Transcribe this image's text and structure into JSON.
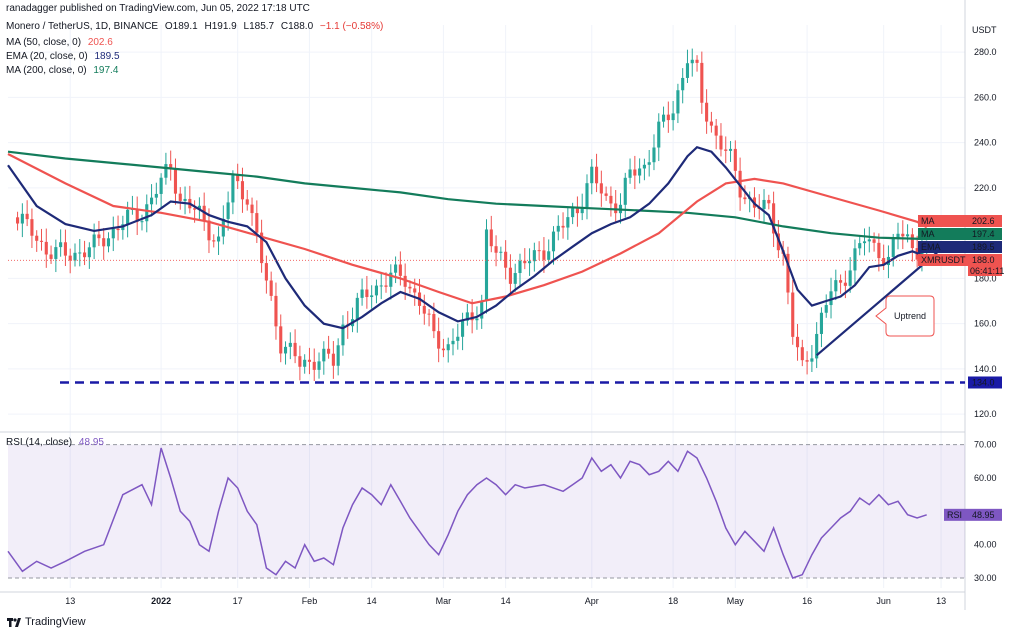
{
  "publisher": "ranadagger published on TradingView.com, Jun 05, 2022 17:18 UTC",
  "symbol": {
    "title": "Monero / TetherUS, 1D, BINANCE",
    "o": "O189.1",
    "h": "H191.9",
    "l": "L185.7",
    "c": "C188.0",
    "chg": "−1.1 (−0.58%)"
  },
  "indicators": [
    {
      "name": "MA (50, close, 0)",
      "value": "202.6",
      "color": "#ef5350"
    },
    {
      "name": "EMA (20, close, 0)",
      "value": "189.5",
      "color": "#1e2a78"
    },
    {
      "name": "MA (200, close, 0)",
      "value": "197.4",
      "color": "#137c5b"
    }
  ],
  "rsi_legend": {
    "name": "RSI (14, close)",
    "value": "48.95"
  },
  "price_tags": [
    {
      "label": "MA",
      "value": "202.6",
      "color": "#ef5350"
    },
    {
      "label": "MA",
      "value": "197.4",
      "color": "#137c5b"
    },
    {
      "label": "EMA",
      "value": "189.5",
      "color": "#1e2a78"
    },
    {
      "label": "XMRUSDT",
      "value": "188.0",
      "sub": "06:41:11",
      "color": "#ef5350"
    }
  ],
  "support_tag": "134.0",
  "rsi_tag": {
    "label": "RSI",
    "value": "48.95"
  },
  "annotation": "Uptrend",
  "logo_text": "TradingView",
  "colors": {
    "up": "#26a69a",
    "down": "#ef5350",
    "rsi": "#7e57c2",
    "support": "#1a1aa6",
    "trend": "#1e2a78"
  },
  "chart_data": {
    "type": "candlestick",
    "currency": "USDT",
    "price_axis": {
      "ticks": [
        "280.0",
        "260.0",
        "240.0",
        "220.0",
        "180.0",
        "160.0",
        "140.0",
        "120.0"
      ],
      "ylim": [
        113,
        292
      ]
    },
    "rsi_axis": {
      "ticks": [
        "70.00",
        "60.00",
        "40.00",
        "30.00"
      ],
      "ylim": [
        27,
        72
      ],
      "band": [
        30,
        70
      ]
    },
    "x_ticks": [
      "13",
      "2022",
      "17",
      "Feb",
      "14",
      "Mar",
      "14",
      "Apr",
      "18",
      "May",
      "16",
      "Jun",
      "13"
    ],
    "x_tick_days": [
      -19,
      0,
      16,
      31,
      44,
      59,
      72,
      90,
      107,
      120,
      135,
      151,
      163
    ],
    "support_level": 134.0,
    "trendline": {
      "from": {
        "day": 137,
        "price": 146
      },
      "to": {
        "day": 163,
        "price": 193
      }
    },
    "price_anchors": [
      [
        -30,
        207
      ],
      [
        -24,
        193
      ],
      [
        -20,
        190
      ],
      [
        -14,
        194
      ],
      [
        -8,
        205
      ],
      [
        -4,
        209
      ],
      [
        0,
        222
      ],
      [
        2,
        230
      ],
      [
        4,
        215
      ],
      [
        8,
        208
      ],
      [
        12,
        196
      ],
      [
        15,
        223
      ],
      [
        18,
        217
      ],
      [
        21,
        187
      ],
      [
        23,
        170
      ],
      [
        25,
        152
      ],
      [
        29,
        142
      ],
      [
        33,
        145
      ],
      [
        36,
        143
      ],
      [
        38,
        159
      ],
      [
        41,
        168
      ],
      [
        44,
        175
      ],
      [
        48,
        181
      ],
      [
        51,
        180
      ],
      [
        54,
        170
      ],
      [
        57,
        154
      ],
      [
        60,
        150
      ],
      [
        63,
        158
      ],
      [
        65,
        164
      ],
      [
        67,
        170
      ],
      [
        68,
        200
      ],
      [
        70,
        190
      ],
      [
        73,
        183
      ],
      [
        76,
        186
      ],
      [
        80,
        193
      ],
      [
        84,
        203
      ],
      [
        87,
        212
      ],
      [
        90,
        225
      ],
      [
        93,
        215
      ],
      [
        96,
        213
      ],
      [
        98,
        226
      ],
      [
        101,
        230
      ],
      [
        104,
        245
      ],
      [
        107,
        255
      ],
      [
        110,
        278
      ],
      [
        112,
        270
      ],
      [
        113,
        258
      ],
      [
        116,
        243
      ],
      [
        119,
        232
      ],
      [
        121,
        220
      ],
      [
        124,
        212
      ],
      [
        127,
        210
      ],
      [
        130,
        190
      ],
      [
        132,
        155
      ],
      [
        134,
        140
      ],
      [
        136,
        150
      ],
      [
        138,
        162
      ],
      [
        140,
        174
      ],
      [
        142,
        178
      ],
      [
        145,
        190
      ],
      [
        147,
        197
      ],
      [
        150,
        193
      ],
      [
        152,
        187
      ],
      [
        154,
        200
      ],
      [
        156,
        198
      ],
      [
        158,
        193
      ],
      [
        160,
        188
      ]
    ],
    "ma50": [
      [
        -32,
        235
      ],
      [
        -20,
        222
      ],
      [
        -10,
        212
      ],
      [
        0,
        209
      ],
      [
        10,
        205
      ],
      [
        20,
        199
      ],
      [
        30,
        193
      ],
      [
        40,
        186
      ],
      [
        50,
        180
      ],
      [
        58,
        174
      ],
      [
        65,
        169
      ],
      [
        72,
        172
      ],
      [
        80,
        177
      ],
      [
        88,
        183
      ],
      [
        96,
        191
      ],
      [
        104,
        200
      ],
      [
        112,
        214
      ],
      [
        118,
        222
      ],
      [
        124,
        224
      ],
      [
        130,
        222
      ],
      [
        140,
        216
      ],
      [
        150,
        210
      ],
      [
        158,
        205
      ],
      [
        160,
        202.6
      ]
    ],
    "ma200": [
      [
        -32,
        236
      ],
      [
        -20,
        233
      ],
      [
        -10,
        231
      ],
      [
        0,
        229
      ],
      [
        10,
        227
      ],
      [
        20,
        225
      ],
      [
        30,
        222
      ],
      [
        40,
        220
      ],
      [
        50,
        218
      ],
      [
        60,
        215
      ],
      [
        70,
        213
      ],
      [
        80,
        212
      ],
      [
        90,
        211
      ],
      [
        100,
        210
      ],
      [
        110,
        209
      ],
      [
        120,
        207
      ],
      [
        130,
        203
      ],
      [
        140,
        200
      ],
      [
        150,
        198
      ],
      [
        160,
        197.4
      ]
    ],
    "ema20": [
      [
        -32,
        230
      ],
      [
        -26,
        212
      ],
      [
        -20,
        204
      ],
      [
        -14,
        201
      ],
      [
        -8,
        203
      ],
      [
        -2,
        208
      ],
      [
        2,
        214
      ],
      [
        6,
        213
      ],
      [
        10,
        208
      ],
      [
        14,
        205
      ],
      [
        18,
        203
      ],
      [
        22,
        196
      ],
      [
        26,
        180
      ],
      [
        30,
        168
      ],
      [
        34,
        160
      ],
      [
        38,
        158
      ],
      [
        42,
        163
      ],
      [
        46,
        169
      ],
      [
        50,
        174
      ],
      [
        54,
        171
      ],
      [
        58,
        165
      ],
      [
        62,
        161
      ],
      [
        66,
        163
      ],
      [
        70,
        168
      ],
      [
        74,
        175
      ],
      [
        78,
        181
      ],
      [
        82,
        188
      ],
      [
        86,
        194
      ],
      [
        90,
        200
      ],
      [
        94,
        204
      ],
      [
        98,
        207
      ],
      [
        102,
        213
      ],
      [
        106,
        222
      ],
      [
        110,
        234
      ],
      [
        112,
        238
      ],
      [
        115,
        236
      ],
      [
        118,
        229
      ],
      [
        121,
        221
      ],
      [
        124,
        213
      ],
      [
        127,
        208
      ],
      [
        130,
        192
      ],
      [
        133,
        175
      ],
      [
        136,
        168
      ],
      [
        139,
        170
      ],
      [
        142,
        172
      ],
      [
        145,
        177
      ],
      [
        148,
        185
      ],
      [
        151,
        186
      ],
      [
        154,
        190
      ],
      [
        157,
        192
      ],
      [
        160,
        189.5
      ]
    ],
    "rsi": [
      [
        -32,
        38
      ],
      [
        -29,
        32
      ],
      [
        -26,
        35
      ],
      [
        -23,
        33
      ],
      [
        -20,
        35
      ],
      [
        -16,
        38
      ],
      [
        -12,
        40
      ],
      [
        -8,
        55
      ],
      [
        -4,
        58
      ],
      [
        -2,
        52
      ],
      [
        0,
        69
      ],
      [
        2,
        60
      ],
      [
        4,
        50
      ],
      [
        6,
        47
      ],
      [
        8,
        40
      ],
      [
        10,
        38
      ],
      [
        12,
        50
      ],
      [
        14,
        60
      ],
      [
        16,
        57
      ],
      [
        18,
        50
      ],
      [
        20,
        46
      ],
      [
        22,
        33
      ],
      [
        24,
        31
      ],
      [
        26,
        35
      ],
      [
        28,
        33
      ],
      [
        30,
        40
      ],
      [
        32,
        35
      ],
      [
        34,
        36
      ],
      [
        36,
        34
      ],
      [
        38,
        45
      ],
      [
        40,
        52
      ],
      [
        42,
        57
      ],
      [
        44,
        55
      ],
      [
        46,
        52
      ],
      [
        48,
        58
      ],
      [
        50,
        53
      ],
      [
        52,
        48
      ],
      [
        54,
        44
      ],
      [
        56,
        40
      ],
      [
        58,
        37
      ],
      [
        60,
        43
      ],
      [
        62,
        50
      ],
      [
        64,
        55
      ],
      [
        66,
        58
      ],
      [
        68,
        60
      ],
      [
        70,
        58
      ],
      [
        72,
        55
      ],
      [
        74,
        58
      ],
      [
        76,
        57
      ],
      [
        80,
        58
      ],
      [
        84,
        56
      ],
      [
        86,
        58
      ],
      [
        88,
        60
      ],
      [
        90,
        66
      ],
      [
        92,
        62
      ],
      [
        94,
        64
      ],
      [
        96,
        60
      ],
      [
        98,
        65
      ],
      [
        100,
        64
      ],
      [
        102,
        61
      ],
      [
        104,
        62
      ],
      [
        106,
        65
      ],
      [
        108,
        62
      ],
      [
        110,
        68
      ],
      [
        112,
        66
      ],
      [
        114,
        60
      ],
      [
        116,
        53
      ],
      [
        118,
        45
      ],
      [
        120,
        40
      ],
      [
        122,
        44
      ],
      [
        124,
        41
      ],
      [
        126,
        38
      ],
      [
        128,
        45
      ],
      [
        130,
        37
      ],
      [
        132,
        30
      ],
      [
        134,
        31
      ],
      [
        136,
        37
      ],
      [
        138,
        42
      ],
      [
        140,
        45
      ],
      [
        142,
        48
      ],
      [
        144,
        50
      ],
      [
        146,
        54
      ],
      [
        148,
        52
      ],
      [
        150,
        55
      ],
      [
        152,
        52
      ],
      [
        154,
        53
      ],
      [
        156,
        49
      ],
      [
        158,
        48
      ],
      [
        160,
        48.95
      ]
    ]
  }
}
